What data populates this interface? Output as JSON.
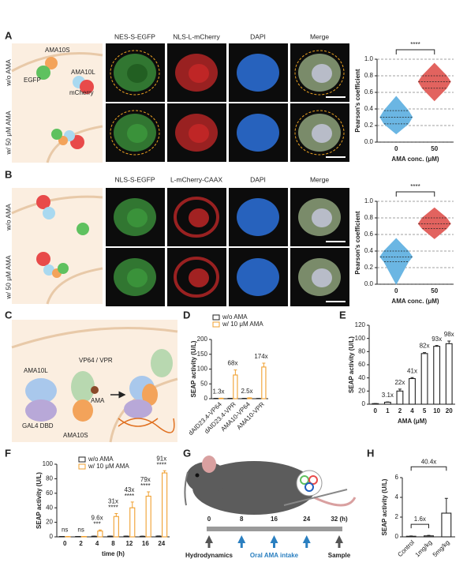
{
  "figure": {
    "panel_labels": [
      "A",
      "B",
      "C",
      "D",
      "E",
      "F",
      "G",
      "H"
    ],
    "A": {
      "rows": [
        "w/o AMA",
        "w/ 50 μM AMA"
      ],
      "columns": [
        "NES-S-EGFP",
        "NLS-L-mCherry",
        "DAPI",
        "Merge"
      ],
      "cartoon_labels": [
        "AMA10S",
        "EGFP",
        "AMA10L",
        "mCherry"
      ]
    },
    "B": {
      "rows": [
        "w/o AMA",
        "w/ 50 μM AMA"
      ],
      "columns": [
        "NLS-S-EGFP",
        "L-mCherry-CAAX",
        "DAPI",
        "Merge"
      ]
    },
    "C": {
      "cartoon_labels": [
        "AMA10L",
        "VP64 / VPR",
        "AMA",
        "GAL4 DBD",
        "AMA10S"
      ]
    },
    "G": {
      "xlim": [
        0,
        32
      ],
      "xticks": [
        0,
        8,
        16,
        24,
        {
          "value": 32,
          "label": "32 (h)"
        }
      ],
      "labels": [
        "Hydrodynamics",
        "Oral AMA intake",
        "Sample"
      ]
    }
  },
  "chart_data": [
    {
      "type": "violin",
      "ylabel": "Pearson's coefficient",
      "xlabel": "AMA conc. (μM)",
      "categories": [
        "0",
        "50"
      ],
      "colors": [
        "#6bb6e3",
        "#e2635f"
      ],
      "stats": [
        {
          "min": 0.1,
          "q1": 0.22,
          "median": 0.3,
          "q3": 0.38,
          "max": 0.55
        },
        {
          "min": 0.5,
          "q1": 0.65,
          "median": 0.73,
          "q3": 0.8,
          "max": 0.95
        }
      ],
      "ylim": [
        0,
        1
      ],
      "yticks": [
        {
          "value": 0,
          "label": "0.0"
        },
        0.2,
        0.4,
        0.6,
        0.8,
        {
          "value": 1,
          "label": "1.0"
        }
      ],
      "grid": true,
      "significance": "****"
    },
    {
      "type": "violin",
      "ylabel": "Pearson's coefficient",
      "xlabel": "AMA conc. (μM)",
      "categories": [
        "0",
        "50"
      ],
      "colors": [
        "#6bb6e3",
        "#e2635f"
      ],
      "stats": [
        {
          "min": 0.0,
          "q1": 0.27,
          "median": 0.33,
          "q3": 0.4,
          "max": 0.55
        },
        {
          "min": 0.55,
          "q1": 0.67,
          "median": 0.73,
          "q3": 0.8,
          "max": 0.92
        }
      ],
      "ylim": [
        0,
        1
      ],
      "yticks": [
        {
          "value": 0,
          "label": "0.0"
        },
        0.2,
        0.4,
        0.6,
        0.8,
        {
          "value": 1,
          "label": "1.0"
        }
      ],
      "grid": true,
      "significance": "****"
    },
    {
      "type": "bar",
      "ylabel": "SEAP activity (U/L)",
      "categories": [
        "dAID23.4-VP64",
        "dAID23.4-VPR",
        "AMA10-VP64",
        "AMA10-VPR"
      ],
      "xtick_rotation": -45,
      "series": [
        {
          "name": "w/o AMA",
          "color": "#222222",
          "values": [
            1,
            1.2,
            1,
            0.6
          ],
          "errors": [
            0.2,
            0.2,
            0.2,
            0.2
          ]
        },
        {
          "name": "w/ 10 μM AMA",
          "color": "#f0a030",
          "values": [
            1.3,
            80,
            2.5,
            107
          ],
          "errors": [
            0.3,
            17,
            0.5,
            13
          ]
        }
      ],
      "fold_labels": [
        "1.3x",
        "68x",
        "2.5x",
        "174x"
      ],
      "ylim": [
        0,
        200
      ],
      "yticks": [
        0,
        50,
        100,
        150,
        200
      ]
    },
    {
      "type": "bar",
      "ylabel": "SEAP activity (U/L)",
      "xlabel": "AMA (μM)",
      "categories": [
        "0",
        "1",
        "2",
        "4",
        "5",
        "10",
        "20"
      ],
      "color": "#222222",
      "values": [
        0.9,
        3,
        20,
        39,
        77,
        88,
        92
      ],
      "errors": [
        0.2,
        0.5,
        3,
        1.5,
        1.5,
        1.2,
        4
      ],
      "fold_labels": [
        null,
        "3.1x",
        "22x",
        "41x",
        "82x",
        "93x",
        "98x"
      ],
      "ylim": [
        0,
        120
      ],
      "yticks": [
        0,
        20,
        40,
        60,
        80,
        100,
        120
      ]
    },
    {
      "type": "bar",
      "ylabel": "SEAP activity (U/L)",
      "xlabel": "time (h)",
      "categories": [
        "0",
        "2",
        "4",
        "8",
        "12",
        "16",
        "24"
      ],
      "series": [
        {
          "name": "w/o AMA",
          "color": "#222222",
          "values": [
            0.5,
            0.5,
            0.8,
            0.9,
            0.9,
            0.7,
            1
          ],
          "errors": [
            0.1,
            0.1,
            0.2,
            0.2,
            0.2,
            0.2,
            0.2
          ]
        },
        {
          "name": "w/ 10 μM AMA",
          "color": "#f0a030",
          "values": [
            0.3,
            0.4,
            8,
            28,
            40,
            56,
            88
          ],
          "errors": [
            0.1,
            0.1,
            1.5,
            4,
            8,
            6,
            3
          ]
        }
      ],
      "fold_labels": [
        "ns",
        "ns",
        "9.6x",
        "31x",
        "43x",
        "79x",
        "91x"
      ],
      "significance": [
        null,
        null,
        "***",
        "****",
        "****",
        "****",
        "****"
      ],
      "ylim": [
        0,
        100
      ],
      "yticks": [
        0,
        20,
        40,
        60,
        80,
        100
      ]
    },
    {
      "type": "bar",
      "ylabel": "SEAP activity (U/L)",
      "categories": [
        "Control",
        "1mg/kg",
        "5mg/kg"
      ],
      "xtick_rotation": -45,
      "color": "#222222",
      "values": [
        0.06,
        0.1,
        2.4
      ],
      "errors": [
        0.03,
        0.05,
        1.5
      ],
      "brackets": [
        {
          "label": "1.6x",
          "categories": [
            "Control",
            "1mg/kg"
          ]
        },
        {
          "label": "40.4x",
          "categories": [
            "Control",
            "5mg/kg"
          ]
        }
      ],
      "ylim": [
        0,
        6
      ],
      "yticks": [
        0,
        2,
        4,
        6
      ]
    }
  ]
}
